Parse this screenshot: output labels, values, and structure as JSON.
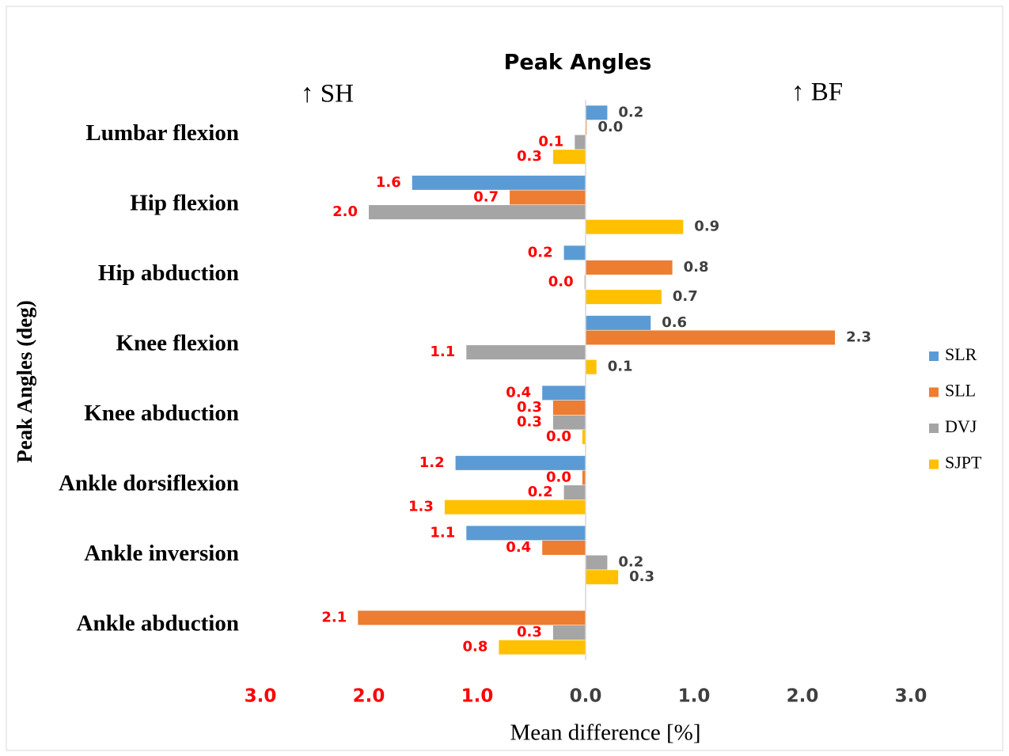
{
  "chart_data": {
    "type": "hbar",
    "title": "Peak Angles",
    "annotations": [
      "↑ SH",
      "↑ BF"
    ],
    "ylabel": "Peak Angles (deg)",
    "xlabel": "Mean difference [%]",
    "categories": [
      "Lumbar flexion",
      "Hip flexion",
      "Hip abduction",
      "Knee flexion",
      "Knee abduction",
      "Ankle dorsiflexion",
      "Ankle inversion",
      "Ankle abduction"
    ],
    "series": [
      {
        "name": "SLR",
        "color": "#5b9bd5",
        "values": [
          0.2,
          -1.6,
          -0.2,
          0.6,
          -0.4,
          -1.2,
          -1.1,
          null
        ],
        "value_labels": [
          "0.2",
          "1.6",
          "0.2",
          "0.6",
          "0.4",
          "1.2",
          "1.1",
          null
        ]
      },
      {
        "name": "SLL",
        "color": "#ed7d31",
        "values": [
          0.01,
          -0.7,
          0.8,
          2.3,
          -0.3,
          -0.03,
          -0.4,
          -2.1
        ],
        "value_labels": [
          "0.0",
          "0.7",
          "0.8",
          "2.3",
          "0.3",
          "0.0",
          "0.4",
          "2.1"
        ]
      },
      {
        "name": "DVJ",
        "color": "#a5a5a5",
        "values": [
          -0.1,
          -2.0,
          -0.01,
          -1.1,
          -0.3,
          -0.2,
          0.2,
          -0.3
        ],
        "value_labels": [
          "0.1",
          "2.0",
          "0.0",
          "1.1",
          "0.3",
          "0.2",
          "0.2",
          "0.3"
        ]
      },
      {
        "name": "SJPT",
        "color": "#ffc000",
        "values": [
          -0.3,
          0.9,
          0.7,
          0.1,
          -0.03,
          -1.3,
          0.3,
          -0.8
        ],
        "value_labels": [
          "0.3",
          "0.9",
          "0.7",
          "0.1",
          "0.0",
          "1.3",
          "0.3",
          "0.8"
        ]
      }
    ],
    "xlim": [
      -3,
      3
    ],
    "xticks": [
      {
        "value": -3,
        "label": "3.0"
      },
      {
        "value": -2,
        "label": "2.0"
      },
      {
        "value": -1,
        "label": "1.0"
      },
      {
        "value": 0,
        "label": "0.0"
      },
      {
        "value": 1,
        "label": "1.0"
      },
      {
        "value": 2,
        "label": "2.0"
      },
      {
        "value": 3,
        "label": "3.0"
      }
    ],
    "negative_label_color": "#ff0000",
    "positive_label_color": "#404040",
    "legend": "right"
  }
}
